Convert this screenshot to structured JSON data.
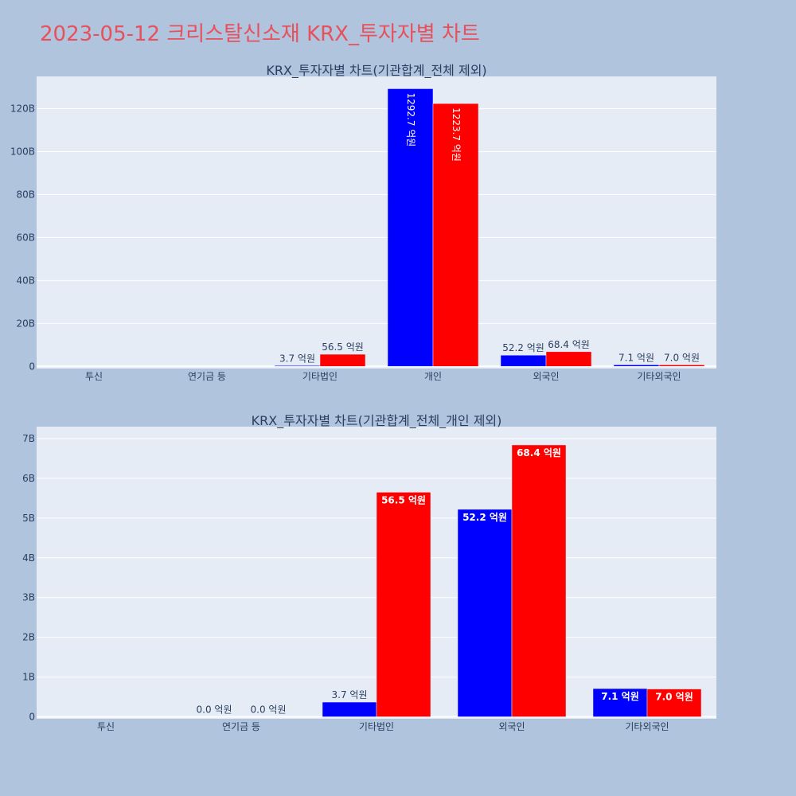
{
  "page": {
    "title": "2023-05-12 크리스탈신소재 KRX_투자자별 차트"
  },
  "chart_data": [
    {
      "type": "bar",
      "title": "KRX_투자자별 차트(기관합계_전체 제외)",
      "categories": [
        "투신",
        "연기금 등",
        "기타법인",
        "개인",
        "외국인",
        "기타외국인"
      ],
      "ylim": [
        -1,
        135
      ],
      "yticks": [
        0,
        20,
        40,
        60,
        80,
        100,
        120
      ],
      "ytick_labels": [
        "0",
        "20B",
        "40B",
        "60B",
        "80B",
        "100B",
        "120B"
      ],
      "grid": true,
      "series": [
        {
          "color": "#0000ff",
          "values": [
            0,
            0,
            0.37,
            129.27,
            5.22,
            0.71
          ],
          "labels": [
            "",
            "",
            "3.7 억원",
            "1292.7 억원",
            "52.2 억원",
            "7.1 억원"
          ]
        },
        {
          "color": "#ff0000",
          "values": [
            0,
            0,
            5.65,
            122.37,
            6.84,
            0.7
          ],
          "labels": [
            "",
            "",
            "56.5 억원",
            "1223.7 억원",
            "68.4 억원",
            "7.0 억원"
          ]
        }
      ]
    },
    {
      "type": "bar",
      "title": "KRX_투자자별 차트(기관합계_전체_개인 제외)",
      "categories": [
        "투신",
        "연기금 등",
        "기타법인",
        "외국인",
        "기타외국인"
      ],
      "ylim": [
        -0.05,
        7.3
      ],
      "yticks": [
        0,
        1,
        2,
        3,
        4,
        5,
        6,
        7
      ],
      "ytick_labels": [
        "0",
        "1B",
        "2B",
        "3B",
        "4B",
        "5B",
        "6B",
        "7B"
      ],
      "grid": true,
      "series": [
        {
          "color": "#0000ff",
          "values": [
            0,
            0,
            0.37,
            5.22,
            0.71
          ],
          "labels": [
            "",
            "0.0 억원",
            "3.7 억원",
            "52.2 억원",
            "7.1 억원"
          ]
        },
        {
          "color": "#ff0000",
          "values": [
            0,
            0,
            5.65,
            6.84,
            0.7
          ],
          "labels": [
            "",
            "0.0 억원",
            "56.5 억원",
            "68.4 억원",
            "7.0 억원"
          ]
        }
      ]
    }
  ]
}
